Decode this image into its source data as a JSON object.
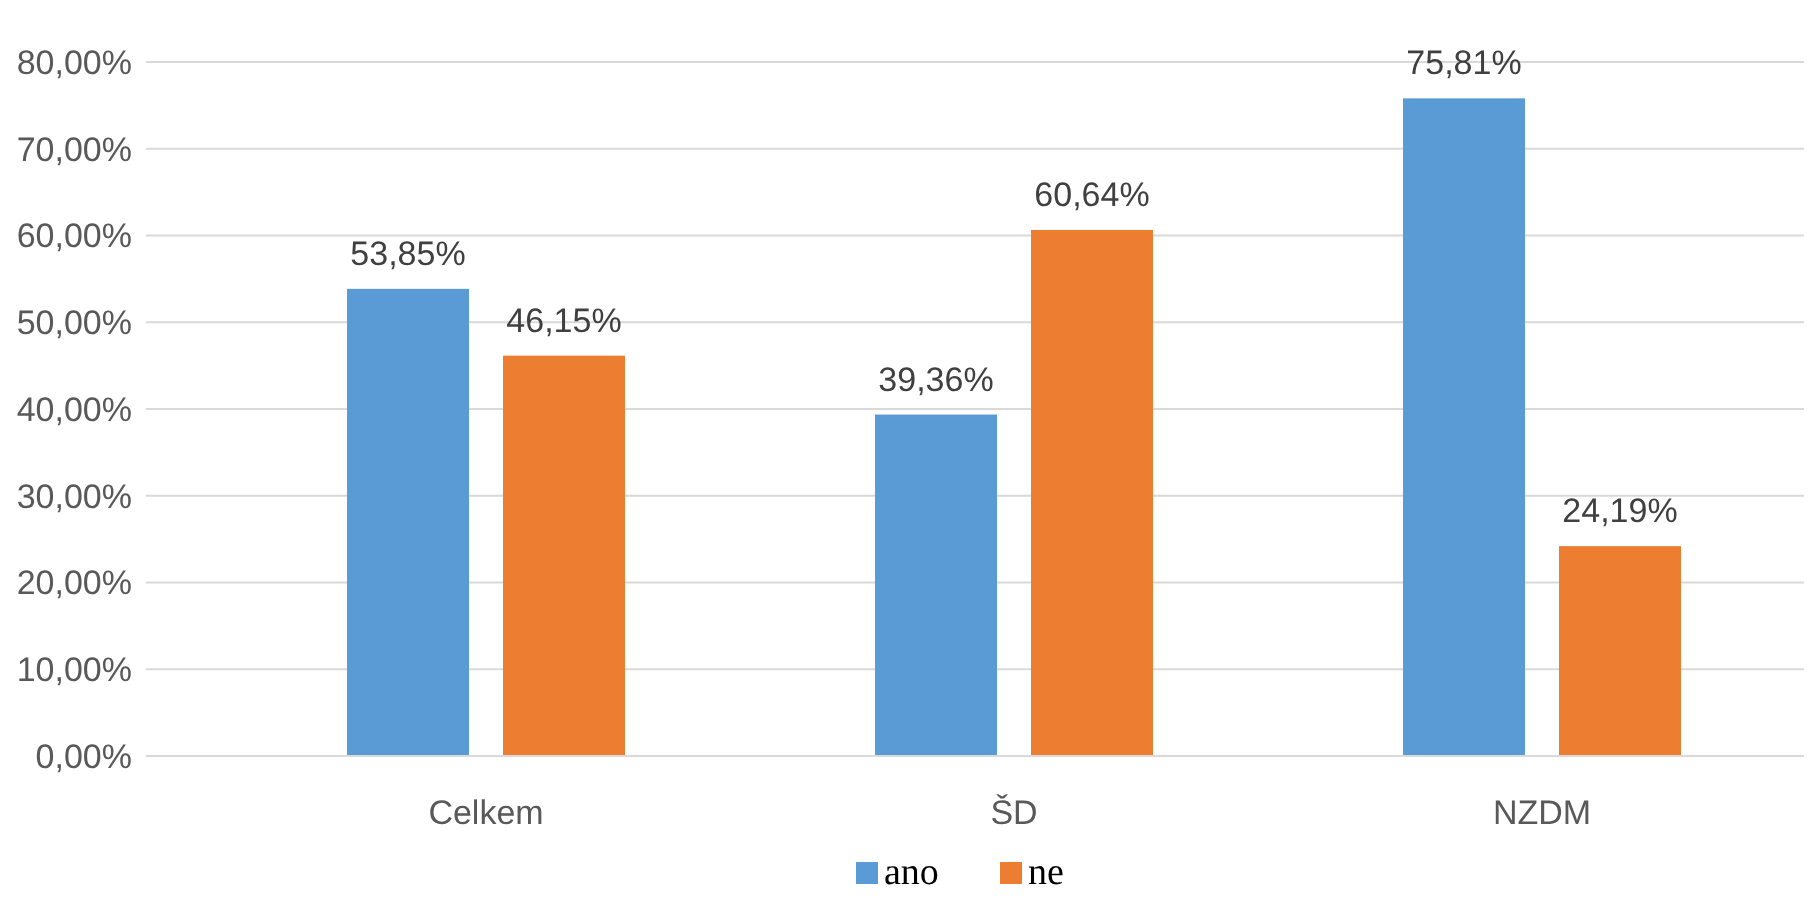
{
  "chart_data": {
    "type": "bar",
    "categories": [
      "Celkem",
      "ŠD",
      "NZDM"
    ],
    "series": [
      {
        "name": "ano",
        "color": "#5b9bd5",
        "values": [
          53.85,
          39.36,
          75.81
        ],
        "value_labels": [
          "53,85%",
          "39,36%",
          "75,81%"
        ]
      },
      {
        "name": "ne",
        "color": "#ed7d31",
        "values": [
          46.15,
          60.64,
          24.19
        ],
        "value_labels": [
          "46,15%",
          "60,64%",
          "24,19%"
        ]
      }
    ],
    "ylim": [
      0,
      80
    ],
    "yticks": [
      {
        "value": 0,
        "label": "0,00%"
      },
      {
        "value": 10,
        "label": "10,00%"
      },
      {
        "value": 20,
        "label": "20,00%"
      },
      {
        "value": 30,
        "label": "30,00%"
      },
      {
        "value": 40,
        "label": "40,00%"
      },
      {
        "value": 50,
        "label": "50,00%"
      },
      {
        "value": 60,
        "label": "60,00%"
      },
      {
        "value": 70,
        "label": "70,00%"
      },
      {
        "value": 80,
        "label": "80,00%"
      }
    ],
    "grid": "y",
    "legend": "bottom"
  }
}
